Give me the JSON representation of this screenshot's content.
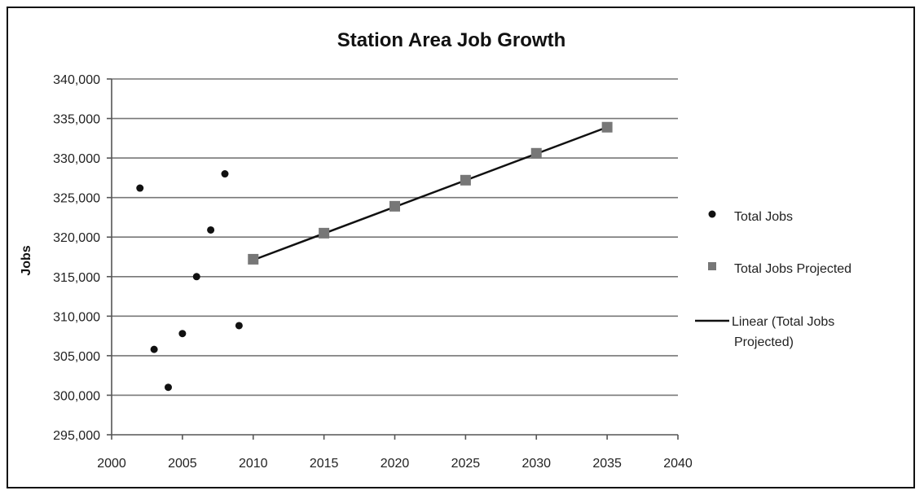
{
  "chart_data": {
    "type": "scatter",
    "title": "Station Area Job Growth",
    "xlabel": "",
    "ylabel": "Jobs",
    "xlim": [
      2000,
      2040
    ],
    "ylim": [
      295000,
      340000
    ],
    "x_ticks": [
      2000,
      2005,
      2010,
      2015,
      2020,
      2025,
      2030,
      2035,
      2040
    ],
    "x_tick_labels": [
      "2000",
      "2005",
      "2010",
      "2015",
      "2020",
      "2025",
      "2030",
      "2035",
      "2040"
    ],
    "y_ticks": [
      295000,
      300000,
      305000,
      310000,
      315000,
      320000,
      325000,
      330000,
      335000,
      340000
    ],
    "y_tick_labels": [
      "295,000",
      "300,000",
      "305,000",
      "310,000",
      "315,000",
      "320,000",
      "325,000",
      "330,000",
      "335,000",
      "340,000"
    ],
    "grid": true,
    "legend_position": "right",
    "series": [
      {
        "name": "Total Jobs",
        "marker": "circle",
        "color": "#111111",
        "x": [
          2002,
          2003,
          2004,
          2005,
          2006,
          2007,
          2008,
          2009
        ],
        "y": [
          326200,
          305800,
          301000,
          307800,
          315000,
          320900,
          328000,
          308800
        ]
      },
      {
        "name": "Total Jobs Projected",
        "marker": "square",
        "color": "#777777",
        "x": [
          2010,
          2015,
          2020,
          2025,
          2030,
          2035
        ],
        "y": [
          317200,
          320500,
          323900,
          327200,
          330600,
          333900
        ]
      },
      {
        "name": "Linear (Total Jobs Projected)",
        "name_lines": [
          "Linear (Total Jobs",
          "Projected)"
        ],
        "type": "trendline",
        "color": "#111111",
        "x": [
          2010,
          2035
        ],
        "y": [
          317100,
          333900
        ]
      }
    ]
  }
}
